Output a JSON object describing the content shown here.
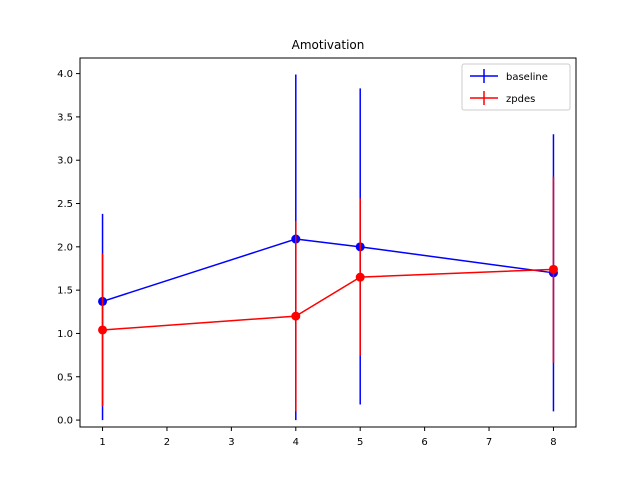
{
  "chart_data": {
    "type": "line",
    "title": "Amotivation",
    "xlabel": "",
    "ylabel": "",
    "x": [
      1,
      4,
      5,
      8
    ],
    "xlim": [
      0.65,
      8.35
    ],
    "ylim": [
      -0.08,
      4.18
    ],
    "xticks": [
      1,
      2,
      3,
      4,
      5,
      6,
      7,
      8
    ],
    "yticks": [
      0.0,
      0.5,
      1.0,
      1.5,
      2.0,
      2.5,
      3.0,
      3.5,
      4.0
    ],
    "grid": false,
    "legend_position": "top-right",
    "series": [
      {
        "name": "baseline",
        "color": "#0000ff",
        "values": [
          1.37,
          2.09,
          2.0,
          1.7
        ],
        "yerr_low": [
          0.0,
          0.0,
          0.18,
          0.1
        ],
        "yerr_high": [
          2.38,
          3.99,
          3.83,
          3.3
        ]
      },
      {
        "name": "zpdes",
        "color": "#ff0000",
        "values": [
          1.04,
          1.2,
          1.65,
          1.74
        ],
        "yerr_low": [
          0.16,
          0.1,
          0.74,
          0.66
        ],
        "yerr_high": [
          1.92,
          2.3,
          2.56,
          2.81
        ]
      }
    ]
  }
}
